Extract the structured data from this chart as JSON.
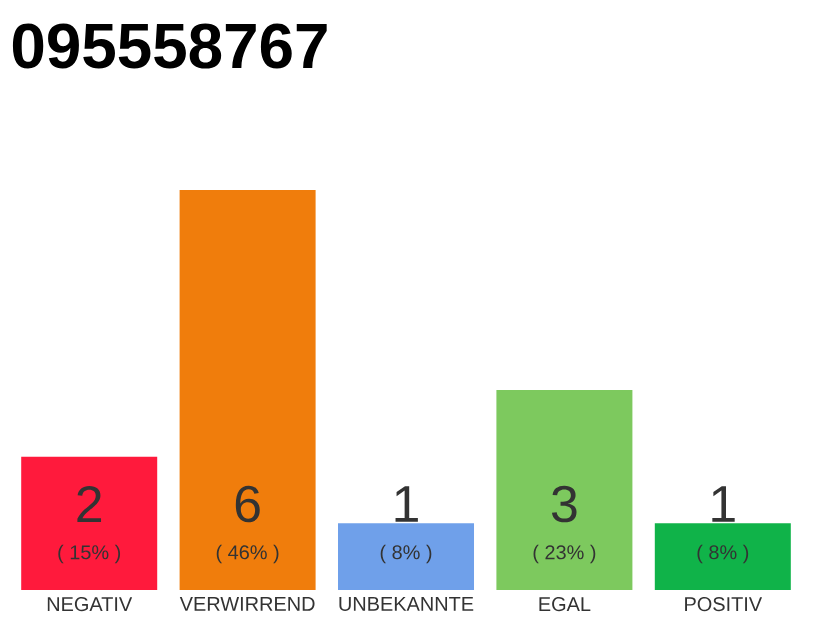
{
  "chart_data": {
    "type": "bar",
    "title": "095558767",
    "categories": [
      "NEGATIV",
      "VERWIRREND",
      "UNBEKANNTE",
      "EGAL",
      "POSITIV"
    ],
    "values": [
      2,
      6,
      1,
      3,
      1
    ],
    "colors": [
      "#ff1a3c",
      "#f07d0c",
      "#6fa0ea",
      "#7dc95e",
      "#10b349"
    ],
    "value_labels": [
      "2",
      "6",
      "1",
      "3",
      "1"
    ],
    "annotations": [
      "( 15% )",
      "( 46% )",
      "( 8% )",
      "( 23% )",
      "( 8% )"
    ]
  }
}
